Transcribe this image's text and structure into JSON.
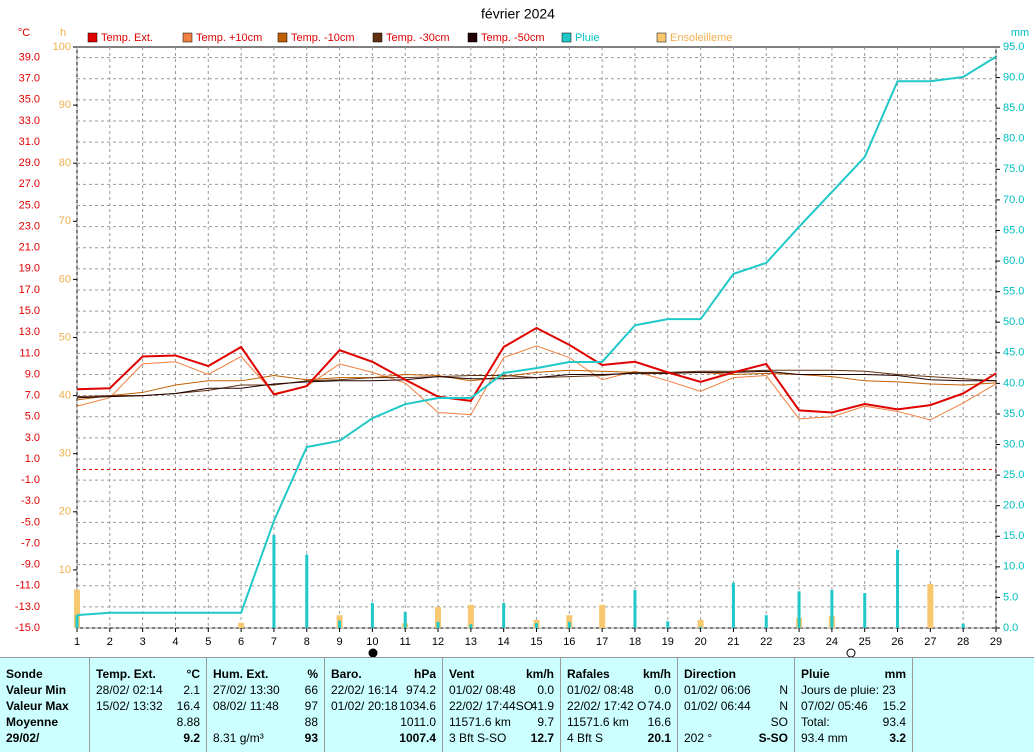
{
  "chart_data": {
    "type": "line",
    "title": "février 2024",
    "y_label": "°C",
    "h_label": "h",
    "y2_label": "mm",
    "axis_colors": {
      "y": "#e00000",
      "h": "#f0b050",
      "y2": "#00c0c0"
    },
    "grid": true,
    "x": [
      1,
      2,
      3,
      4,
      5,
      6,
      7,
      8,
      9,
      10,
      11,
      12,
      13,
      14,
      15,
      16,
      17,
      18,
      19,
      20,
      21,
      22,
      23,
      24,
      25,
      26,
      27,
      28,
      29
    ],
    "xlim": [
      1,
      29
    ],
    "xticks": [
      1,
      2,
      3,
      4,
      5,
      6,
      7,
      8,
      9,
      10,
      11,
      12,
      13,
      14,
      15,
      16,
      17,
      18,
      19,
      20,
      21,
      22,
      23,
      24,
      25,
      26,
      27,
      28,
      29
    ],
    "ylim": [
      -15,
      40
    ],
    "yticks": [
      {
        "value": -15,
        "label": "-15.0"
      },
      {
        "value": -13,
        "label": "-13.0"
      },
      {
        "value": -11,
        "label": "-11.0"
      },
      {
        "value": -9,
        "label": "-9.0"
      },
      {
        "value": -7,
        "label": "-7.0"
      },
      {
        "value": -5,
        "label": "-5.0"
      },
      {
        "value": -3,
        "label": "-3.0"
      },
      {
        "value": -1,
        "label": "-1.0"
      },
      {
        "value": 1,
        "label": "1.0"
      },
      {
        "value": 3,
        "label": "3.0"
      },
      {
        "value": 5,
        "label": "5.0"
      },
      {
        "value": 7,
        "label": "7.0"
      },
      {
        "value": 9,
        "label": "9.0"
      },
      {
        "value": 11,
        "label": "11.0"
      },
      {
        "value": 13,
        "label": "13.0"
      },
      {
        "value": 15,
        "label": "15.0"
      },
      {
        "value": 17,
        "label": "17.0"
      },
      {
        "value": 19,
        "label": "19.0"
      },
      {
        "value": 21,
        "label": "21.0"
      },
      {
        "value": 23,
        "label": "23.0"
      },
      {
        "value": 25,
        "label": "25.0"
      },
      {
        "value": 27,
        "label": "27.0"
      },
      {
        "value": 29,
        "label": "29.0"
      },
      {
        "value": 31,
        "label": "31.0"
      },
      {
        "value": 33,
        "label": "33.0"
      },
      {
        "value": 35,
        "label": "35.0"
      },
      {
        "value": 37,
        "label": "37.0"
      },
      {
        "value": 39,
        "label": "39.0"
      }
    ],
    "hlim": [
      0,
      100
    ],
    "hticks": [
      10,
      20,
      30,
      40,
      50,
      60,
      70,
      80,
      90,
      100
    ],
    "y2lim": [
      0,
      95
    ],
    "y2ticks": [
      {
        "value": 0,
        "label": "0.0"
      },
      {
        "value": 5,
        "label": "5.0"
      },
      {
        "value": 10,
        "label": "10.0"
      },
      {
        "value": 15,
        "label": "15.0"
      },
      {
        "value": 20,
        "label": "20.0"
      },
      {
        "value": 25,
        "label": "25.0"
      },
      {
        "value": 30,
        "label": "30.0"
      },
      {
        "value": 35,
        "label": "35.0"
      },
      {
        "value": 40,
        "label": "40.0"
      },
      {
        "value": 45,
        "label": "45.0"
      },
      {
        "value": 50,
        "label": "50.0"
      },
      {
        "value": 55,
        "label": "55.0"
      },
      {
        "value": 60,
        "label": "60.0"
      },
      {
        "value": 65,
        "label": "65.0"
      },
      {
        "value": 70,
        "label": "70.0"
      },
      {
        "value": 75,
        "label": "75.0"
      },
      {
        "value": 80,
        "label": "80.0"
      },
      {
        "value": 85,
        "label": "85.0"
      },
      {
        "value": 90,
        "label": "90.0"
      },
      {
        "value": 95,
        "label": "95.0"
      }
    ],
    "series": [
      {
        "name": "Temp. Ext.",
        "color": "#e00000",
        "axis": "y",
        "width": 2,
        "values": [
          7.6,
          7.7,
          10.7,
          10.8,
          9.8,
          11.6,
          7.1,
          7.9,
          11.3,
          10.2,
          8.5,
          6.9,
          6.5,
          11.6,
          13.4,
          11.8,
          9.9,
          10.2,
          9.2,
          8.3,
          9.2,
          10.0,
          5.6,
          5.4,
          6.2,
          5.7,
          6.1,
          7.2,
          9.1
        ]
      },
      {
        "name": "Temp. +10cm",
        "color": "#f08040",
        "axis": "y",
        "width": 1,
        "values": [
          6.0,
          6.8,
          10.0,
          10.2,
          9.0,
          10.7,
          7.2,
          7.9,
          10.0,
          9.2,
          8.2,
          5.4,
          5.2,
          10.6,
          11.7,
          10.6,
          8.5,
          9.3,
          8.4,
          7.4,
          8.7,
          8.9,
          4.8,
          5.0,
          6.0,
          5.5,
          4.7,
          6.3,
          8.1
        ]
      },
      {
        "name": "Temp. -10cm",
        "color": "#c06000",
        "axis": "y",
        "width": 1,
        "values": [
          6.6,
          7.0,
          7.3,
          8.0,
          8.4,
          8.4,
          8.9,
          8.5,
          8.7,
          8.7,
          9.0,
          8.9,
          8.4,
          8.8,
          9.2,
          9.4,
          9.3,
          9.2,
          9.1,
          9.2,
          9.0,
          9.1,
          9.0,
          8.8,
          8.4,
          8.3,
          8.1,
          8.0,
          8.2
        ]
      },
      {
        "name": "Temp. -30cm",
        "color": "#603010",
        "axis": "y",
        "width": 1,
        "values": [
          6.9,
          7.0,
          7.0,
          7.2,
          7.5,
          8.0,
          8.0,
          8.4,
          8.5,
          8.7,
          8.7,
          8.8,
          8.9,
          8.9,
          8.7,
          8.8,
          8.9,
          9.2,
          9.2,
          9.3,
          9.3,
          9.4,
          9.4,
          9.4,
          9.3,
          9.0,
          8.8,
          8.6,
          8.4
        ]
      },
      {
        "name": "Temp. -50cm",
        "color": "#200000",
        "axis": "y",
        "width": 1,
        "values": [
          6.8,
          6.9,
          7.0,
          7.2,
          7.7,
          7.7,
          8.1,
          8.3,
          8.4,
          8.4,
          8.5,
          8.8,
          8.6,
          8.6,
          8.7,
          9.0,
          9.0,
          9.1,
          9.1,
          9.2,
          9.2,
          9.3,
          9.0,
          9.0,
          9.0,
          8.9,
          8.5,
          8.4,
          8.4
        ]
      },
      {
        "name": "Pluie",
        "color": "#20c8c8",
        "axis": "y2",
        "width": 2,
        "values": [
          2.1,
          2.5,
          2.5,
          2.5,
          2.5,
          2.5,
          17.5,
          29.6,
          30.6,
          34.3,
          36.6,
          37.6,
          37.6,
          41.7,
          42.5,
          43.5,
          43.5,
          49.5,
          50.5,
          50.5,
          57.9,
          59.7,
          65.6,
          71.3,
          77.0,
          89.4,
          89.4,
          90.1,
          93.4
        ],
        "daily": [
          2.1,
          0,
          0,
          0,
          0,
          0,
          15.2,
          12.0,
          1.2,
          4.1,
          2.6,
          1.0,
          0.6,
          4.1,
          0.8,
          1.0,
          0,
          6.2,
          1.1,
          0.2,
          7.4,
          2.1,
          6.0,
          6.2,
          5.7,
          12.8,
          0,
          0.7,
          0
        ]
      },
      {
        "name": "Ensoleilleme",
        "color": "#f8c870",
        "axis": "h",
        "bars": true,
        "values": [
          6.6,
          0,
          0,
          0,
          0,
          0.9,
          0,
          0,
          2.2,
          0,
          0.8,
          3.6,
          4.0,
          0,
          1.4,
          2.2,
          4.0,
          0,
          0,
          1.4,
          0,
          0,
          1.7,
          2.1,
          0,
          0,
          7.6,
          0,
          0
        ]
      }
    ]
  },
  "table": {
    "columns": [
      {
        "name": "Sonde",
        "rows": [
          "Valeur Min",
          "Valeur Max",
          "Moyenne",
          "29/02/"
        ]
      },
      {
        "name": "Temp. Ext.",
        "unit": "°C",
        "rows": [
          {
            "note": "28/02/ 02:14",
            "value": "2.1"
          },
          {
            "note": "15/02/ 13:32",
            "value": "16.4"
          },
          {
            "value": "8.88"
          },
          {
            "value": "9.2"
          }
        ]
      },
      {
        "name": "Hum. Ext.",
        "unit": "%",
        "rows": [
          {
            "note": "27/02/ 13:30",
            "value": "66"
          },
          {
            "note": "08/02/ 11:48",
            "value": "97"
          },
          {
            "value": "88"
          },
          {
            "note": "8.31 g/m³",
            "value": "93"
          }
        ]
      },
      {
        "name": "Baro.",
        "unit": "hPa",
        "rows": [
          {
            "note": "22/02/ 16:14",
            "value": "974.2"
          },
          {
            "note": "01/02/ 20:18",
            "value": "1034.6"
          },
          {
            "value": "1011.0"
          },
          {
            "value": "1007.4"
          }
        ]
      },
      {
        "name": "Vent",
        "unit": "km/h",
        "rows": [
          {
            "note": "01/02/ 08:48",
            "value": "0.0"
          },
          {
            "note": "22/02/ 17:44SO",
            "value": "41.9"
          },
          {
            "note": "11571.6 km",
            "value": "9.7"
          },
          {
            "note": "3 Bft S-SO",
            "value": "12.7"
          }
        ]
      },
      {
        "name": "Rafales",
        "unit": "km/h",
        "rows": [
          {
            "note": "01/02/ 08:48",
            "value": "0.0"
          },
          {
            "note": "22/02/ 17:42 O",
            "value": "74.0"
          },
          {
            "note": "11571.6 km",
            "value": "16.6"
          },
          {
            "note": "4 Bft S",
            "value": "20.1"
          }
        ]
      },
      {
        "name": "Direction",
        "rows": [
          {
            "note": "01/02/ 06:06",
            "value": "N"
          },
          {
            "note": "01/02/ 06:44",
            "value": "N"
          },
          {
            "value": "SO"
          },
          {
            "note": "202 °",
            "value": "S-SO"
          }
        ]
      },
      {
        "name": "Pluie",
        "unit": "mm",
        "rows": [
          {
            "note": "Jours de pluie: 23"
          },
          {
            "note": "07/02/ 05:46",
            "value": "15.2"
          },
          {
            "note": "Total:",
            "value": "93.4"
          },
          {
            "note": "93.4 mm",
            "value": "3.2"
          }
        ]
      }
    ]
  }
}
